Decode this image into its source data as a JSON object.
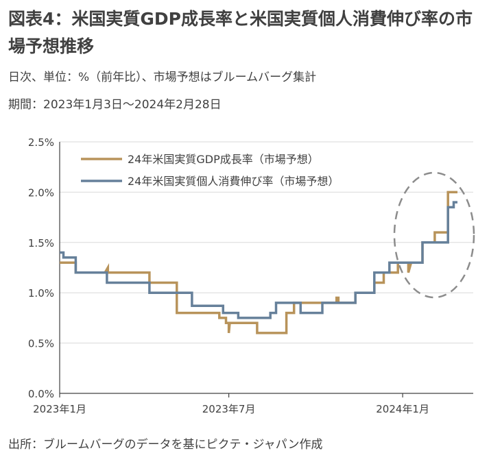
{
  "header": {
    "title": "図表4：米国実質GDP成長率と米国実質個人消費伸び率の市場予想推移",
    "subtitle": "日次、単位：%（前年比）、市場予想はブルームバーグ集計",
    "period": "期間：2023年1月3日～2024年2月28日"
  },
  "footer": {
    "source": "出所：ブルームバーグのデータを基にピクテ・ジャパン作成"
  },
  "chart_data": {
    "type": "line",
    "ylim": [
      0,
      2.5
    ],
    "y_ticks": [
      "0.0%",
      "0.5%",
      "1.0%",
      "1.5%",
      "2.0%",
      "2.5%"
    ],
    "x_ticks": [
      {
        "label": "2023年1月",
        "date": "2023-01-03"
      },
      {
        "label": "2023年7月",
        "date": "2023-07-01"
      },
      {
        "label": "2024年1月",
        "date": "2024-01-01"
      }
    ],
    "xlim": [
      "2023-01-03",
      "2024-02-28"
    ],
    "legend_position": "top-left",
    "series": [
      {
        "name": "24年米国実質GDP成長率（市場予想）",
        "color": "#b8935a",
        "points": [
          [
            "2023-01-03",
            1.3
          ],
          [
            "2023-01-20",
            1.3
          ],
          [
            "2023-01-20",
            1.2
          ],
          [
            "2023-02-20",
            1.2
          ],
          [
            "2023-02-23",
            1.25
          ],
          [
            "2023-02-23",
            1.2
          ],
          [
            "2023-04-08",
            1.2
          ],
          [
            "2023-04-08",
            1.1
          ],
          [
            "2023-05-07",
            1.1
          ],
          [
            "2023-05-07",
            0.8
          ],
          [
            "2023-06-21",
            0.8
          ],
          [
            "2023-06-21",
            0.75
          ],
          [
            "2023-06-28",
            0.75
          ],
          [
            "2023-06-28",
            0.7
          ],
          [
            "2023-07-01",
            0.7
          ],
          [
            "2023-07-01",
            0.6
          ],
          [
            "2023-07-02",
            0.7
          ],
          [
            "2023-07-31",
            0.7
          ],
          [
            "2023-07-31",
            0.6
          ],
          [
            "2023-08-31",
            0.6
          ],
          [
            "2023-08-31",
            0.8
          ],
          [
            "2023-09-08",
            0.8
          ],
          [
            "2023-09-08",
            0.9
          ],
          [
            "2023-10-23",
            0.9
          ],
          [
            "2023-10-23",
            0.95
          ],
          [
            "2023-10-25",
            0.95
          ],
          [
            "2023-10-25",
            0.9
          ],
          [
            "2023-11-12",
            0.9
          ],
          [
            "2023-11-12",
            1.0
          ],
          [
            "2023-12-02",
            1.0
          ],
          [
            "2023-12-02",
            1.1
          ],
          [
            "2023-12-12",
            1.1
          ],
          [
            "2023-12-12",
            1.2
          ],
          [
            "2023-12-27",
            1.2
          ],
          [
            "2023-12-27",
            1.3
          ],
          [
            "2024-01-07",
            1.3
          ],
          [
            "2024-01-07",
            1.2
          ],
          [
            "2024-01-10",
            1.3
          ],
          [
            "2024-01-22",
            1.3
          ],
          [
            "2024-01-22",
            1.5
          ],
          [
            "2024-02-04",
            1.5
          ],
          [
            "2024-02-04",
            1.6
          ],
          [
            "2024-02-18",
            1.6
          ],
          [
            "2024-02-18",
            2.0
          ],
          [
            "2024-02-28",
            2.0
          ]
        ]
      },
      {
        "name": "24年米国実質個人消費伸び率（市場予想）",
        "color": "#66809a",
        "points": [
          [
            "2023-01-03",
            1.4
          ],
          [
            "2023-01-07",
            1.4
          ],
          [
            "2023-01-07",
            1.35
          ],
          [
            "2023-01-20",
            1.35
          ],
          [
            "2023-01-20",
            1.2
          ],
          [
            "2023-02-22",
            1.2
          ],
          [
            "2023-02-22",
            1.1
          ],
          [
            "2023-04-08",
            1.1
          ],
          [
            "2023-04-08",
            1.0
          ],
          [
            "2023-05-23",
            1.0
          ],
          [
            "2023-05-23",
            0.87
          ],
          [
            "2023-06-25",
            0.87
          ],
          [
            "2023-06-25",
            0.8
          ],
          [
            "2023-07-11",
            0.8
          ],
          [
            "2023-07-11",
            0.75
          ],
          [
            "2023-08-14",
            0.75
          ],
          [
            "2023-08-14",
            0.8
          ],
          [
            "2023-08-20",
            0.8
          ],
          [
            "2023-08-20",
            0.9
          ],
          [
            "2023-09-15",
            0.9
          ],
          [
            "2023-09-15",
            0.8
          ],
          [
            "2023-10-08",
            0.8
          ],
          [
            "2023-10-08",
            0.9
          ],
          [
            "2023-11-12",
            0.9
          ],
          [
            "2023-11-12",
            1.0
          ],
          [
            "2023-12-02",
            1.0
          ],
          [
            "2023-12-02",
            1.2
          ],
          [
            "2023-12-18",
            1.2
          ],
          [
            "2023-12-18",
            1.3
          ],
          [
            "2024-01-22",
            1.3
          ],
          [
            "2024-01-22",
            1.5
          ],
          [
            "2024-02-18",
            1.5
          ],
          [
            "2024-02-18",
            1.85
          ],
          [
            "2024-02-24",
            1.85
          ],
          [
            "2024-02-24",
            1.9
          ],
          [
            "2024-02-28",
            1.9
          ]
        ]
      }
    ],
    "annotations": [
      {
        "type": "dashed-ellipse",
        "note": "highlight"
      }
    ]
  }
}
